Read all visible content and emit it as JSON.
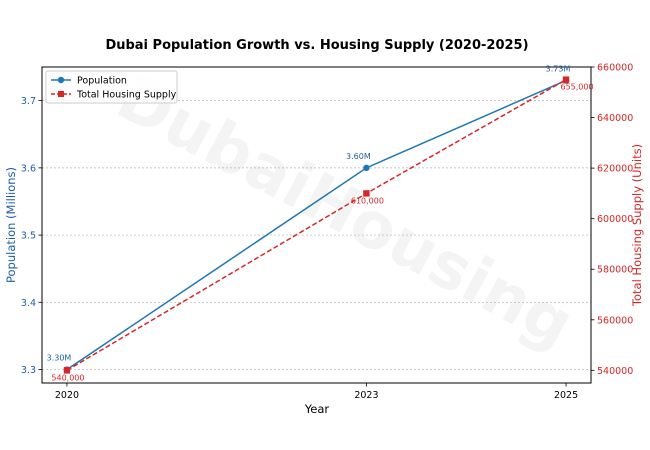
{
  "chart_data": {
    "type": "line",
    "title": "Dubai Population Growth vs. Housing Supply (2020-2025)",
    "xlabel": "Year",
    "ylabel": "Population (Millions)",
    "y2label": "Total Housing Supply (Units)",
    "categories": [
      "2020",
      "2023",
      "2025"
    ],
    "x": [
      2020,
      2023,
      2025
    ],
    "xlim": [
      2019.75,
      2025.25
    ],
    "ylim": [
      3.28,
      3.75
    ],
    "y2lim": [
      535000,
      660000
    ],
    "yticks": [
      3.3,
      3.4,
      3.5,
      3.6,
      3.7
    ],
    "y2ticks": [
      540000,
      560000,
      580000,
      600000,
      620000,
      640000,
      660000
    ],
    "grid": "horizontal dashed",
    "legend_position": "top-left",
    "series": [
      {
        "name": "Population",
        "axis": "left",
        "values": [
          3.3,
          3.6,
          3.73
        ],
        "labels": [
          "3.30M",
          "3.60M",
          "3.73M"
        ],
        "color": "#1f77b4",
        "marker": "circle",
        "linestyle": "solid"
      },
      {
        "name": "Total Housing Supply",
        "axis": "right",
        "values": [
          540000,
          610000,
          655000
        ],
        "labels": [
          "540,000",
          "610,000",
          "655,000"
        ],
        "color": "#d62728",
        "marker": "square",
        "linestyle": "dashed"
      }
    ]
  },
  "watermark": "DubaiHousing"
}
